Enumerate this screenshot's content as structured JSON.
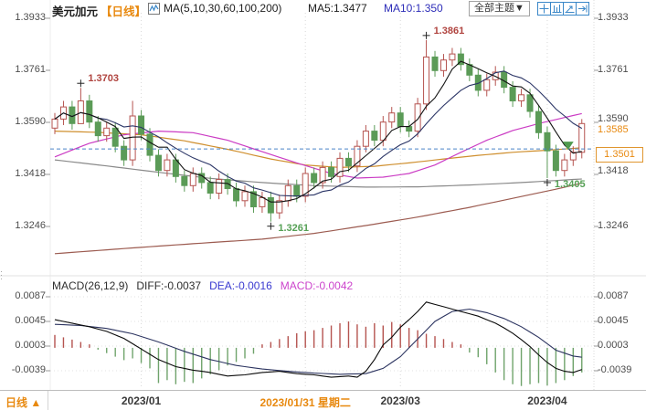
{
  "header": {
    "symbol": "美元加元",
    "period_tag": "【日线】",
    "ma_settings": "MA(5,10,30,60,100,200)",
    "ma5": "MA5:1.3477",
    "ma10": "MA10:1.350",
    "theme_button": "全部主题▼"
  },
  "axes": {
    "main_ticks": [
      "1.3933",
      "1.3761",
      "1.3590",
      "1.3418",
      "1.3246"
    ],
    "macd_ticks": [
      "0.0087",
      "0.0045",
      "0.0003",
      "-0.0039"
    ],
    "current_price_label": "1.3585",
    "boxed_price_label": "1.3501"
  },
  "macd_header": {
    "name": "MACD(26,12,9)",
    "diff": "DIFF:-0.0037",
    "dea": "DEA:-0.0016",
    "macd": "MACD:-0.0042"
  },
  "footer": {
    "period_selector": "日线 ▲",
    "dates": [
      "2023/01",
      "2023/01/31 星期二",
      "2023/03",
      "2023/04"
    ]
  },
  "colors": {
    "up_candle": "#b5534f",
    "down_candle": "#5b9b57",
    "accent_orange": "#e8890f",
    "ma5": "#141414",
    "ma10": "#2b3566",
    "ma30": "#cb3cc4",
    "ma60": "#cf8f2e",
    "ma100": "#8a8a8a",
    "ma200": "#9c5b50",
    "dashed_price_line": "#4a84c8",
    "hist_up": "#b5534f",
    "hist_down": "#6fa36b",
    "grid": "#d9d9d9"
  },
  "chart_data": {
    "type": "candlestick",
    "title": "USD/CAD (美元加元) daily candles with MA(5,10,30,60,100,200) overlays and MACD(26,12,9) subchart",
    "ylim_main": [
      1.316,
      1.396
    ],
    "y_ticks_main": [
      1.3933,
      1.3761,
      1.359,
      1.3418,
      1.3246
    ],
    "x_labels": [
      {
        "label": "2023/01",
        "index": 10
      },
      {
        "label": "2023/01/31 星期二",
        "index": 29
      },
      {
        "label": "2023/03",
        "index": 40
      },
      {
        "label": "2023/04",
        "index": 57
      }
    ],
    "last_price": 1.3585,
    "dashed_line_price": 1.3501,
    "candles": {
      "open": [
        1.357,
        1.36,
        1.364,
        1.3585,
        1.366,
        1.359,
        1.3545,
        1.357,
        1.351,
        1.3465,
        1.361,
        1.355,
        1.348,
        1.343,
        1.3465,
        1.341,
        1.338,
        1.342,
        1.339,
        1.3355,
        1.34,
        1.337,
        1.333,
        1.336,
        1.331,
        1.334,
        1.329,
        1.333,
        1.338,
        1.3345,
        1.342,
        1.339,
        1.344,
        1.341,
        1.347,
        1.3445,
        1.351,
        1.356,
        1.353,
        1.359,
        1.362,
        1.3575,
        1.356,
        1.365,
        1.3805,
        1.376,
        1.3795,
        1.3815,
        1.378,
        1.3745,
        1.3695,
        1.373,
        1.3755,
        1.3705,
        1.366,
        1.368,
        1.3625,
        1.3555,
        1.3495,
        1.343,
        1.3465,
        1.349
      ],
      "close": [
        1.36,
        1.364,
        1.3585,
        1.366,
        1.359,
        1.3545,
        1.357,
        1.351,
        1.3465,
        1.361,
        1.355,
        1.348,
        1.343,
        1.3465,
        1.341,
        1.338,
        1.342,
        1.339,
        1.3355,
        1.34,
        1.337,
        1.333,
        1.336,
        1.331,
        1.334,
        1.329,
        1.333,
        1.338,
        1.3345,
        1.342,
        1.339,
        1.344,
        1.341,
        1.347,
        1.3445,
        1.351,
        1.356,
        1.353,
        1.359,
        1.362,
        1.3575,
        1.356,
        1.365,
        1.3805,
        1.376,
        1.3795,
        1.3815,
        1.378,
        1.3745,
        1.3695,
        1.373,
        1.3755,
        1.3705,
        1.366,
        1.368,
        1.3625,
        1.3555,
        1.3495,
        1.343,
        1.3465,
        1.349,
        1.3585
      ],
      "high": [
        1.362,
        1.366,
        1.366,
        1.3703,
        1.368,
        1.361,
        1.359,
        1.359,
        1.353,
        1.366,
        1.363,
        1.357,
        1.35,
        1.3485,
        1.3485,
        1.343,
        1.344,
        1.344,
        1.341,
        1.342,
        1.342,
        1.339,
        1.338,
        1.338,
        1.336,
        1.336,
        1.335,
        1.34,
        1.34,
        1.344,
        1.344,
        1.346,
        1.346,
        1.349,
        1.349,
        1.353,
        1.358,
        1.358,
        1.361,
        1.364,
        1.364,
        1.3595,
        1.367,
        1.3861,
        1.3825,
        1.3815,
        1.3835,
        1.3835,
        1.38,
        1.3765,
        1.375,
        1.3775,
        1.3775,
        1.3725,
        1.37,
        1.37,
        1.3645,
        1.3575,
        1.3515,
        1.3485,
        1.351,
        1.36
      ],
      "low": [
        1.355,
        1.358,
        1.3565,
        1.362,
        1.357,
        1.3525,
        1.3525,
        1.349,
        1.3445,
        1.3445,
        1.353,
        1.346,
        1.341,
        1.341,
        1.339,
        1.336,
        1.336,
        1.337,
        1.3335,
        1.3335,
        1.335,
        1.331,
        1.331,
        1.329,
        1.329,
        1.3261,
        1.327,
        1.331,
        1.3325,
        1.3325,
        1.337,
        1.337,
        1.339,
        1.339,
        1.3425,
        1.3425,
        1.349,
        1.351,
        1.351,
        1.357,
        1.3555,
        1.354,
        1.354,
        1.363,
        1.374,
        1.374,
        1.3775,
        1.376,
        1.3725,
        1.3675,
        1.3675,
        1.371,
        1.3685,
        1.364,
        1.364,
        1.3605,
        1.3535,
        1.3405,
        1.341,
        1.341,
        1.3445,
        1.347
      ]
    },
    "overlays": [
      {
        "name": "MA30",
        "color": "#cb3cc4",
        "anchors": [
          [
            0,
            1.3475
          ],
          [
            4,
            1.352
          ],
          [
            8,
            1.3548
          ],
          [
            12,
            1.356
          ],
          [
            16,
            1.3555
          ],
          [
            20,
            1.353
          ],
          [
            24,
            1.3492
          ],
          [
            28,
            1.3455
          ],
          [
            32,
            1.342
          ],
          [
            35,
            1.3405
          ],
          [
            38,
            1.3408
          ],
          [
            41,
            1.342
          ],
          [
            44,
            1.3448
          ],
          [
            47,
            1.349
          ],
          [
            50,
            1.353
          ],
          [
            53,
            1.3562
          ],
          [
            56,
            1.3585
          ],
          [
            59,
            1.3605
          ],
          [
            61,
            1.3618
          ]
        ]
      },
      {
        "name": "MA60",
        "color": "#cf8f2e",
        "anchors": [
          [
            0,
            1.356
          ],
          [
            5,
            1.3556
          ],
          [
            10,
            1.3548
          ],
          [
            15,
            1.3528
          ],
          [
            20,
            1.35
          ],
          [
            25,
            1.3468
          ],
          [
            29,
            1.3448
          ],
          [
            33,
            1.344
          ],
          [
            37,
            1.3444
          ],
          [
            41,
            1.3455
          ],
          [
            45,
            1.3468
          ],
          [
            49,
            1.348
          ],
          [
            53,
            1.349
          ],
          [
            57,
            1.3497
          ],
          [
            61,
            1.3505
          ]
        ]
      },
      {
        "name": "MA100",
        "color": "#8a8a8a",
        "anchors": [
          [
            0,
            1.3465
          ],
          [
            6,
            1.3445
          ],
          [
            12,
            1.3424
          ],
          [
            18,
            1.3404
          ],
          [
            24,
            1.339
          ],
          [
            30,
            1.338
          ],
          [
            36,
            1.3375
          ],
          [
            42,
            1.3376
          ],
          [
            48,
            1.3382
          ],
          [
            54,
            1.339
          ],
          [
            61,
            1.3402
          ]
        ]
      },
      {
        "name": "MA200",
        "color": "#9c5b50",
        "anchors": [
          [
            0,
            1.3155
          ],
          [
            8,
            1.3172
          ],
          [
            16,
            1.3188
          ],
          [
            24,
            1.3203
          ],
          [
            30,
            1.3222
          ],
          [
            36,
            1.3248
          ],
          [
            42,
            1.3276
          ],
          [
            48,
            1.3308
          ],
          [
            54,
            1.3344
          ],
          [
            58,
            1.3368
          ],
          [
            61,
            1.3388
          ]
        ]
      }
    ],
    "annotations": [
      {
        "index": 3,
        "label": "1.3703",
        "kind": "high"
      },
      {
        "index": 43,
        "label": "1.3861",
        "kind": "high"
      },
      {
        "index": 25,
        "label": "1.3261",
        "kind": "low"
      },
      {
        "index": 57,
        "label": "1.3405",
        "kind": "low"
      }
    ],
    "macd": {
      "params": "26,12,9",
      "y_ticks": [
        0.0087,
        0.0045,
        0.0003,
        -0.0039
      ],
      "diff_anchors": [
        [
          0,
          0.0048
        ],
        [
          2,
          0.0042
        ],
        [
          4,
          0.0036
        ],
        [
          6,
          0.0028
        ],
        [
          8,
          0.0016
        ],
        [
          10,
          -0.0002
        ],
        [
          12,
          -0.002
        ],
        [
          14,
          -0.0032
        ],
        [
          16,
          -0.0038
        ],
        [
          18,
          -0.0042
        ],
        [
          20,
          -0.0048
        ],
        [
          22,
          -0.0046
        ],
        [
          24,
          -0.0042
        ],
        [
          26,
          -0.004
        ],
        [
          28,
          -0.0044
        ],
        [
          30,
          -0.0046
        ],
        [
          32,
          -0.005
        ],
        [
          34,
          -0.0048
        ],
        [
          35,
          -0.005
        ],
        [
          36,
          -0.004
        ],
        [
          37,
          -0.002
        ],
        [
          38,
          0.0005
        ],
        [
          39,
          0.0018
        ],
        [
          40,
          0.0035
        ],
        [
          41,
          0.0048
        ],
        [
          42,
          0.0062
        ],
        [
          43,
          0.0078
        ],
        [
          44,
          0.0074
        ],
        [
          45,
          0.007
        ],
        [
          46,
          0.0066
        ],
        [
          47,
          0.0062
        ],
        [
          48,
          0.0058
        ],
        [
          49,
          0.0054
        ],
        [
          50,
          0.0048
        ],
        [
          51,
          0.0042
        ],
        [
          52,
          0.0034
        ],
        [
          53,
          0.0025
        ],
        [
          54,
          0.0014
        ],
        [
          55,
          0.0002
        ],
        [
          56,
          -0.0012
        ],
        [
          57,
          -0.0025
        ],
        [
          58,
          -0.0035
        ],
        [
          59,
          -0.004
        ],
        [
          60,
          -0.0042
        ],
        [
          61,
          -0.0037
        ]
      ],
      "dea_anchors": [
        [
          0,
          0.004
        ],
        [
          3,
          0.0038
        ],
        [
          6,
          0.0033
        ],
        [
          9,
          0.0024
        ],
        [
          12,
          0.001
        ],
        [
          15,
          -0.0006
        ],
        [
          18,
          -0.002
        ],
        [
          21,
          -0.003
        ],
        [
          24,
          -0.0036
        ],
        [
          27,
          -0.004
        ],
        [
          30,
          -0.0043
        ],
        [
          33,
          -0.0045
        ],
        [
          36,
          -0.0044
        ],
        [
          38,
          -0.0035
        ],
        [
          40,
          -0.0015
        ],
        [
          42,
          0.0015
        ],
        [
          44,
          0.0045
        ],
        [
          46,
          0.0062
        ],
        [
          48,
          0.0066
        ],
        [
          50,
          0.006
        ],
        [
          52,
          0.005
        ],
        [
          54,
          0.0036
        ],
        [
          56,
          0.0018
        ],
        [
          58,
          -0.0004
        ],
        [
          60,
          -0.0014
        ],
        [
          61,
          -0.0016
        ]
      ],
      "hist": [
        0.0022,
        0.0018,
        0.0014,
        0.001,
        0.0006,
        -0.0003,
        -0.0009,
        -0.0015,
        -0.0021,
        -0.0018,
        -0.0026,
        -0.0035,
        -0.006,
        -0.0055,
        -0.0062,
        -0.0058,
        -0.006,
        -0.0052,
        -0.0045,
        -0.0038,
        -0.003,
        -0.0024,
        -0.0018,
        -0.001,
        0.0006,
        0.001,
        0.0015,
        0.002,
        0.0025,
        0.0028,
        0.003,
        0.0034,
        0.0038,
        0.0042,
        0.0045,
        0.004,
        0.0036,
        0.0042,
        0.0038,
        0.0044,
        0.004,
        0.0034,
        0.003,
        0.0024,
        0.002,
        0.0015,
        0.001,
        0.0006,
        -0.0008,
        -0.0016,
        -0.0028,
        -0.0042,
        -0.0055,
        -0.0062,
        -0.0065,
        -0.0062,
        -0.006,
        -0.0064,
        -0.006,
        -0.0055,
        -0.0048,
        -0.0042
      ]
    }
  }
}
